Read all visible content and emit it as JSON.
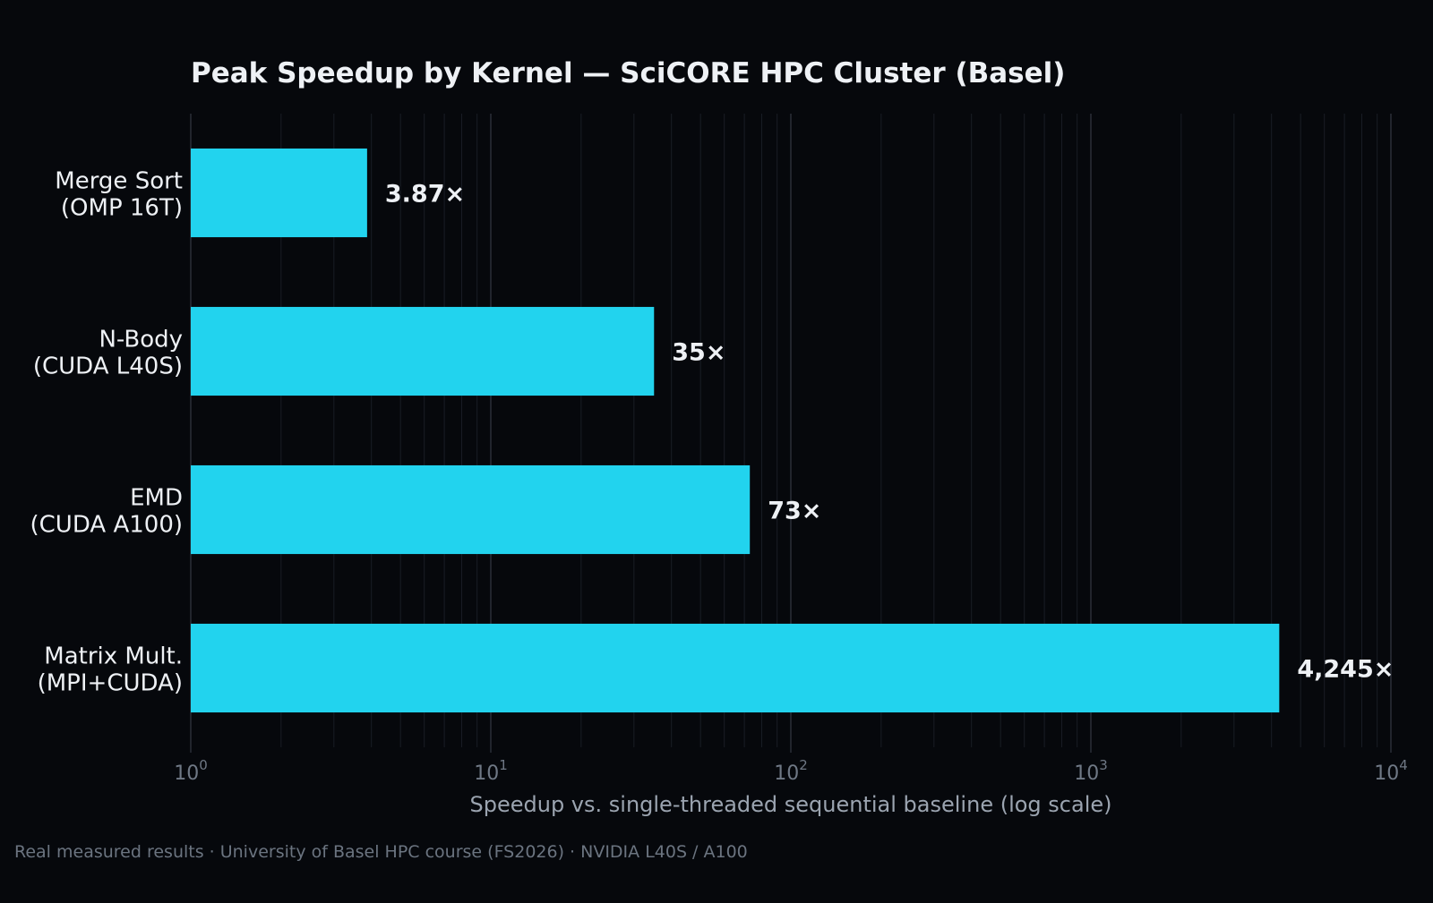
{
  "chart_data": {
    "type": "bar",
    "orientation": "horizontal",
    "title": "Peak Speedup by Kernel — SciCORE HPC Cluster (Basel)",
    "xlabel": "Speedup vs. single-threaded sequential baseline (log scale)",
    "ylabel": "",
    "xscale": "log",
    "xlim": [
      1,
      10000
    ],
    "x_ticks": [
      {
        "base": "10",
        "exp": "0"
      },
      {
        "base": "10",
        "exp": "1"
      },
      {
        "base": "10",
        "exp": "2"
      },
      {
        "base": "10",
        "exp": "3"
      },
      {
        "base": "10",
        "exp": "4"
      }
    ],
    "grid": true,
    "legend": "none",
    "bar_color": "#22d3ee",
    "categories": [
      {
        "line1": "Merge Sort",
        "line2": "(OMP 16T)"
      },
      {
        "line1": "N-Body",
        "line2": "(CUDA L40S)"
      },
      {
        "line1": "EMD",
        "line2": "(CUDA A100)"
      },
      {
        "line1": "Matrix Mult.",
        "line2": "(MPI+CUDA)"
      }
    ],
    "values": [
      3.87,
      35,
      73,
      4245
    ],
    "value_labels": [
      "3.87×",
      "35×",
      "73×",
      "4,245×"
    ]
  },
  "footnote": "Real measured results · University of Basel HPC course (FS2026) · NVIDIA L40S / A100"
}
